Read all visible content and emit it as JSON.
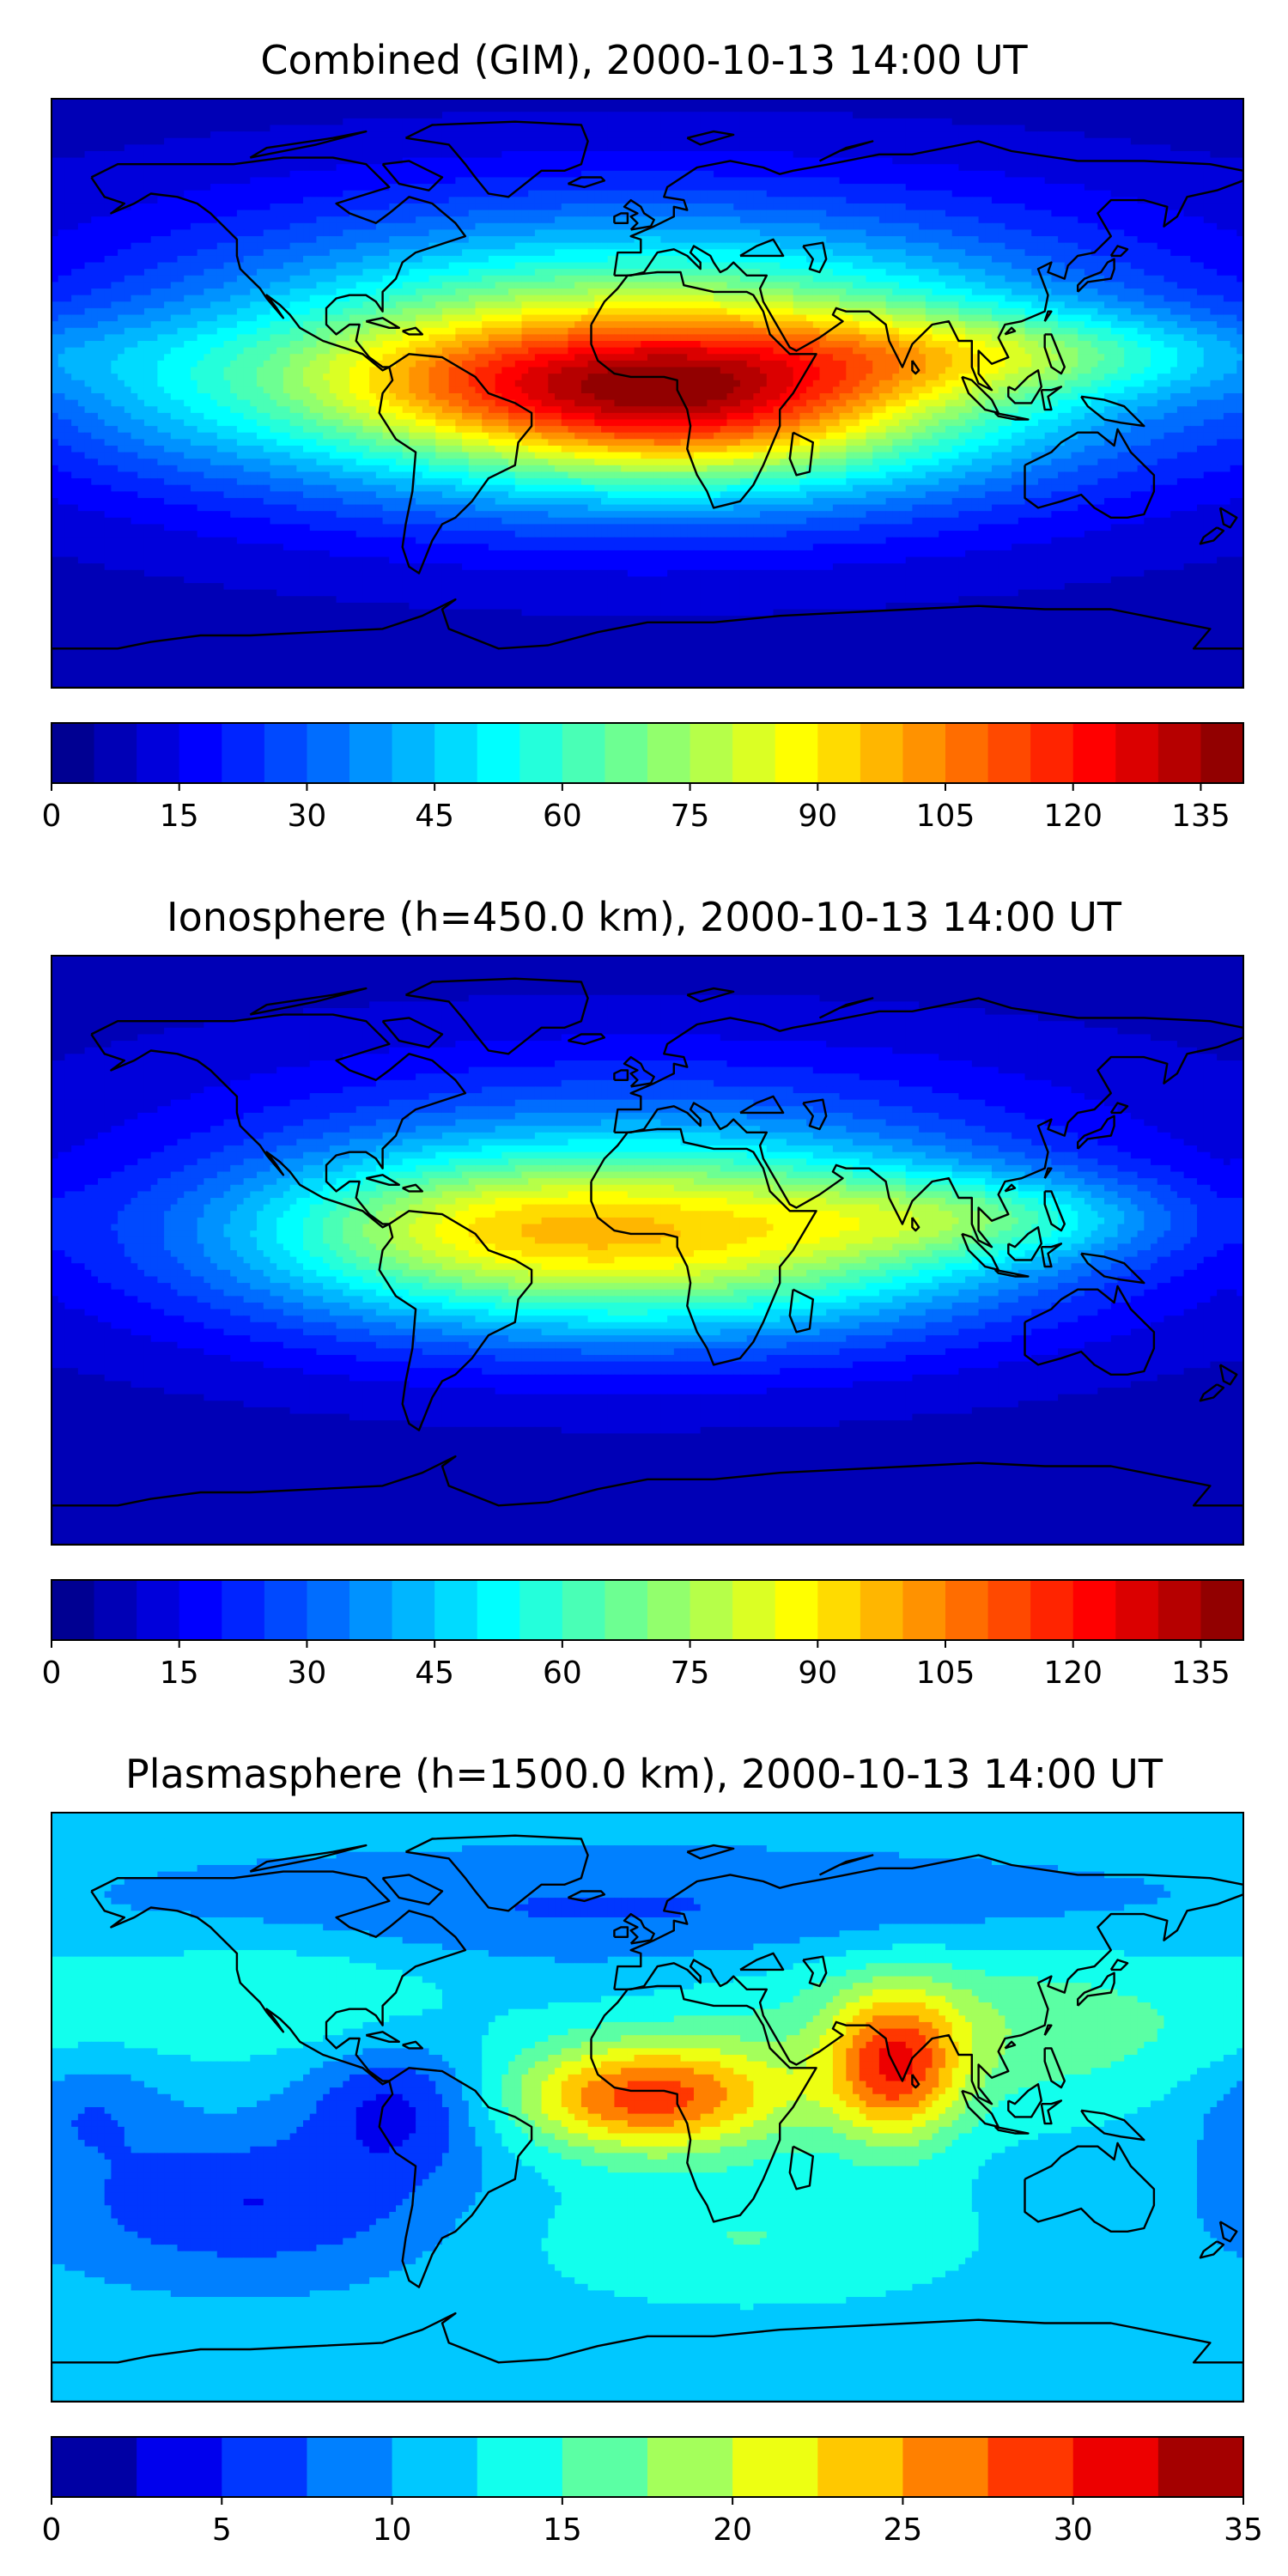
{
  "chart_data": [
    {
      "type": "heatmap",
      "title": "Combined (GIM), 2000-10-13 14:00 UT",
      "projection": "PlateCarree",
      "extent": {
        "lon": [
          -180,
          180
        ],
        "lat": [
          -90,
          90
        ]
      },
      "coastlines": true,
      "colormap": "jet",
      "colorbar": {
        "vmin": 0,
        "vmax": 140,
        "levels": 28,
        "ticks": [
          "0",
          "15",
          "30",
          "45",
          "60",
          "75",
          "90",
          "105",
          "120",
          "135"
        ],
        "tick_values": [
          0,
          15,
          30,
          45,
          60,
          75,
          90,
          105,
          120,
          135
        ],
        "placement": "bottom"
      },
      "field": {
        "baseline": 8,
        "blobs": [
          {
            "lon": 0,
            "lat": 5,
            "sx": 95,
            "sy": 26,
            "v": 100
          },
          {
            "lon": 12,
            "lat": -4,
            "sx": 40,
            "sy": 14,
            "v": 30
          },
          {
            "lon": -60,
            "lat": 4,
            "sx": 40,
            "sy": 12,
            "v": 15
          },
          {
            "lon": 110,
            "lat": 12,
            "sx": 55,
            "sy": 9,
            "v": 25
          },
          {
            "lon": 0,
            "lat": 50,
            "sx": 110,
            "sy": 18,
            "v": 10
          },
          {
            "lon": -150,
            "lat": 0,
            "sx": 30,
            "sy": 18,
            "v": 8
          }
        ]
      }
    },
    {
      "type": "heatmap",
      "title": "Ionosphere  (h=450.0 km), 2000-10-13 14:00 UT",
      "projection": "PlateCarree",
      "extent": {
        "lon": [
          -180,
          180
        ],
        "lat": [
          -90,
          90
        ]
      },
      "coastlines": true,
      "colormap": "jet",
      "colorbar": {
        "vmin": 0,
        "vmax": 140,
        "levels": 28,
        "ticks": [
          "0",
          "15",
          "30",
          "45",
          "60",
          "75",
          "90",
          "105",
          "120",
          "135"
        ],
        "tick_values": [
          0,
          15,
          30,
          45,
          60,
          75,
          90,
          105,
          120,
          135
        ],
        "placement": "bottom"
      },
      "field": {
        "baseline": 8,
        "blobs": [
          {
            "lon": -5,
            "lat": 5,
            "sx": 85,
            "sy": 22,
            "v": 85
          },
          {
            "lon": 100,
            "lat": 10,
            "sx": 40,
            "sy": 9,
            "v": 25
          },
          {
            "lon": -60,
            "lat": 8,
            "sx": 35,
            "sy": 12,
            "v": 10
          },
          {
            "lon": 0,
            "lat": 50,
            "sx": 100,
            "sy": 16,
            "v": 8
          }
        ]
      }
    },
    {
      "type": "heatmap",
      "title": "Plasmasphere (h=1500.0 km), 2000-10-13 14:00 UT",
      "projection": "PlateCarree",
      "extent": {
        "lon": [
          -180,
          180
        ],
        "lat": [
          -90,
          90
        ]
      },
      "coastlines": true,
      "colormap": "jet",
      "colorbar": {
        "vmin": 0,
        "vmax": 35,
        "levels": 14,
        "ticks": [
          "0",
          "5",
          "10",
          "15",
          "20",
          "25",
          "30",
          "35"
        ],
        "tick_values": [
          0,
          5,
          10,
          15,
          20,
          25,
          30,
          35
        ],
        "placement": "bottom"
      },
      "field": {
        "baseline": 11,
        "blobs": [
          {
            "lon": 0,
            "lat": 3,
            "sx": 30,
            "sy": 12,
            "v": 17
          },
          {
            "lon": 75,
            "lat": 12,
            "sx": 14,
            "sy": 16,
            "v": 15
          },
          {
            "lon": 100,
            "lat": 25,
            "sx": 60,
            "sy": 20,
            "v": 6
          },
          {
            "lon": -110,
            "lat": 35,
            "sx": 40,
            "sy": 15,
            "v": 4
          },
          {
            "lon": -75,
            "lat": 0,
            "sx": 20,
            "sy": 14,
            "v": -7
          },
          {
            "lon": -120,
            "lat": -30,
            "sx": 40,
            "sy": 15,
            "v": -6
          },
          {
            "lon": -170,
            "lat": 0,
            "sx": 18,
            "sy": 12,
            "v": -4
          },
          {
            "lon": 30,
            "lat": -40,
            "sx": 50,
            "sy": 15,
            "v": 4
          },
          {
            "lon": 0,
            "lat": 60,
            "sx": 120,
            "sy": 12,
            "v": -4
          }
        ]
      }
    }
  ]
}
